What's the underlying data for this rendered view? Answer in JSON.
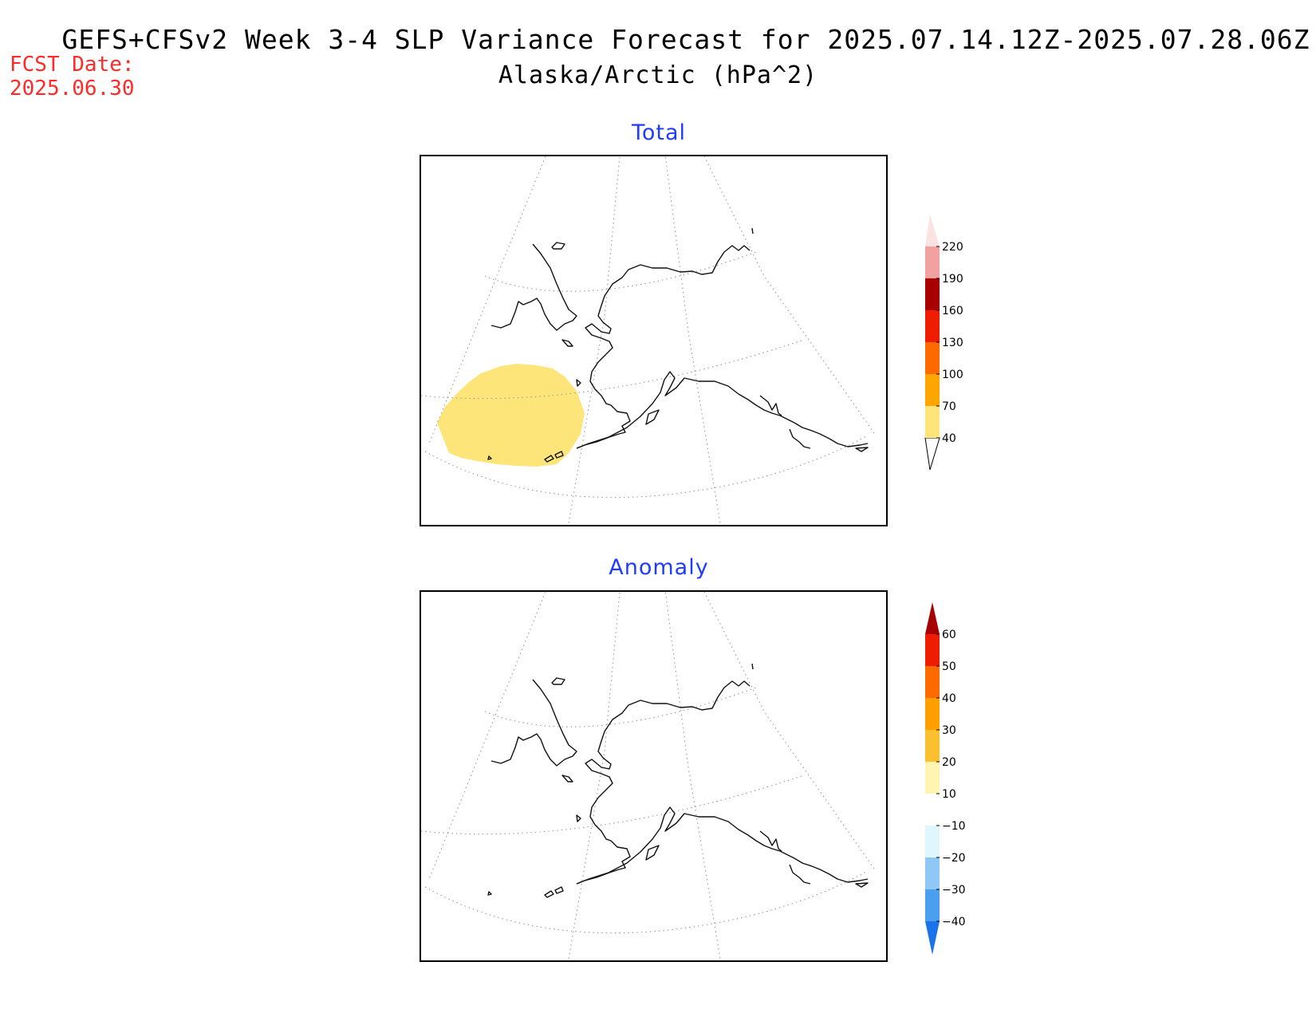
{
  "header": {
    "title": "GEFS+CFSv2 Week 3-4 SLP Variance Forecast for 2025.07.14.12Z-2025.07.28.06Z",
    "subtitle": "Alaska/Arctic (hPa^2)",
    "fcst_label": "FCST Date:",
    "fcst_date": "2025.06.30"
  },
  "panels": {
    "total": {
      "title": "Total",
      "shaded_region": {
        "color": "#fde57a",
        "value_range": "40-70",
        "location": "Bering Sea / Aleutians"
      },
      "colorbar": {
        "levels": [
          "40",
          "70",
          "100",
          "130",
          "160",
          "190",
          "220"
        ],
        "colors": [
          "#fde57a",
          "#ffa500",
          "#ff6a00",
          "#ee1c00",
          "#a80000",
          "#f2a0a0",
          "#fde2e2"
        ],
        "below_color": "#ffffff"
      }
    },
    "anomaly": {
      "title": "Anomaly",
      "colorbar": {
        "levels": [
          "-40",
          "-30",
          "-20",
          "-10",
          "10",
          "20",
          "30",
          "40",
          "50",
          "60"
        ],
        "colors": [
          "#1a73e8",
          "#4a9fee",
          "#90c8f5",
          "#dff6ff",
          "#ffffff",
          "#fff5b0",
          "#fbc02d",
          "#ffa000",
          "#ff6a00",
          "#ee1c00",
          "#a80000"
        ]
      }
    }
  }
}
